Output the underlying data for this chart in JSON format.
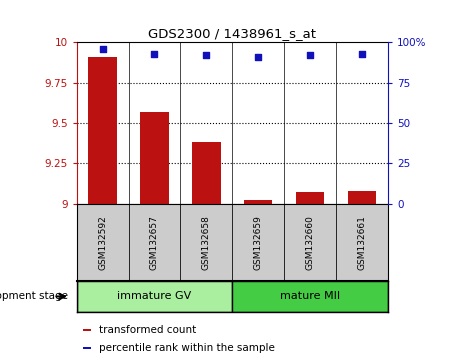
{
  "title": "GDS2300 / 1438961_s_at",
  "samples": [
    "GSM132592",
    "GSM132657",
    "GSM132658",
    "GSM132659",
    "GSM132660",
    "GSM132661"
  ],
  "bar_values": [
    9.91,
    9.57,
    9.38,
    9.02,
    9.07,
    9.08
  ],
  "percentile_values": [
    96,
    93,
    92,
    91,
    92,
    93
  ],
  "ylim_left": [
    9.0,
    10.0
  ],
  "ylim_right": [
    0,
    100
  ],
  "yticks_left": [
    9.0,
    9.25,
    9.5,
    9.75,
    10.0
  ],
  "yticks_right": [
    0,
    25,
    50,
    75,
    100
  ],
  "ytick_labels_left": [
    "9",
    "9.25",
    "9.5",
    "9.75",
    "10"
  ],
  "ytick_labels_right": [
    "0",
    "25",
    "50",
    "75",
    "100%"
  ],
  "bar_color": "#bb1111",
  "dot_color": "#1111bb",
  "group1_label": "immature GV",
  "group2_label": "mature MII",
  "group1_color": "#aaeea0",
  "group2_color": "#44cc44",
  "stage_label": "development stage",
  "legend_bar_label": "transformed count",
  "legend_dot_label": "percentile rank within the sample",
  "bar_width": 0.55,
  "x_positions": [
    0,
    1,
    2,
    3,
    4,
    5
  ],
  "sample_box_color": "#cccccc",
  "background_color": "#ffffff"
}
